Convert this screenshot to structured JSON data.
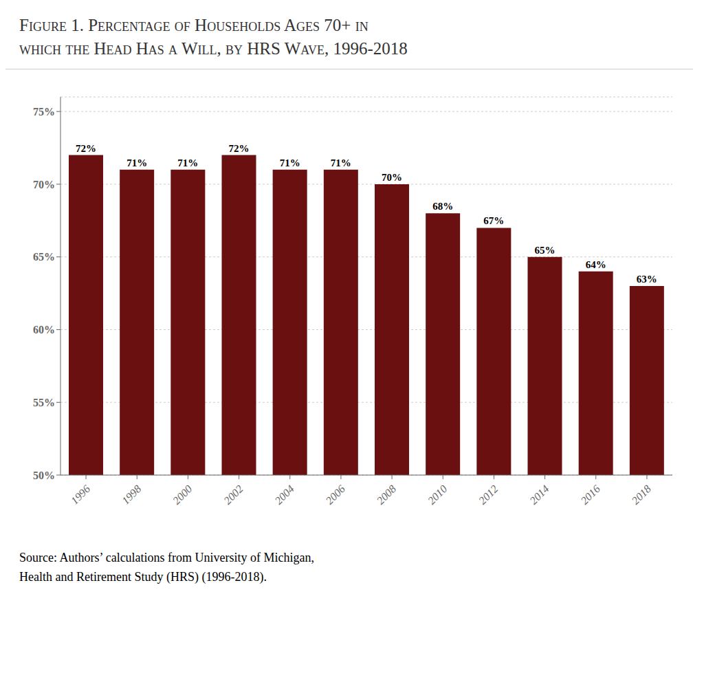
{
  "chart_data": {
    "type": "bar",
    "title": "Figure 1. Percentage of Households Ages 70+ in\nwhich the Head Has a Will, by HRS Wave, 1996-2018",
    "categories": [
      "1996",
      "1998",
      "2000",
      "2002",
      "2004",
      "2006",
      "2008",
      "2010",
      "2012",
      "2014",
      "2016",
      "2018"
    ],
    "values": [
      72,
      71,
      71,
      72,
      71,
      71,
      70,
      68,
      67,
      65,
      64,
      63
    ],
    "value_labels": [
      "72%",
      "71%",
      "71%",
      "72%",
      "71%",
      "71%",
      "70%",
      "68%",
      "67%",
      "65%",
      "64%",
      "63%"
    ],
    "data_labels": true,
    "color": "#6B1010",
    "ylim": [
      50,
      76
    ],
    "yticks": [
      {
        "value": 50,
        "label": "50%"
      },
      {
        "value": 55,
        "label": "55%"
      },
      {
        "value": 60,
        "label": "60%"
      },
      {
        "value": 65,
        "label": "65%"
      },
      {
        "value": 70,
        "label": "70%"
      },
      {
        "value": 75,
        "label": "75%"
      }
    ],
    "grid": true,
    "annotations": [
      "Source: Authors’ calculations from University of Michigan,",
      "Health and Retirement Study (HRS) (1996-2018)."
    ]
  }
}
